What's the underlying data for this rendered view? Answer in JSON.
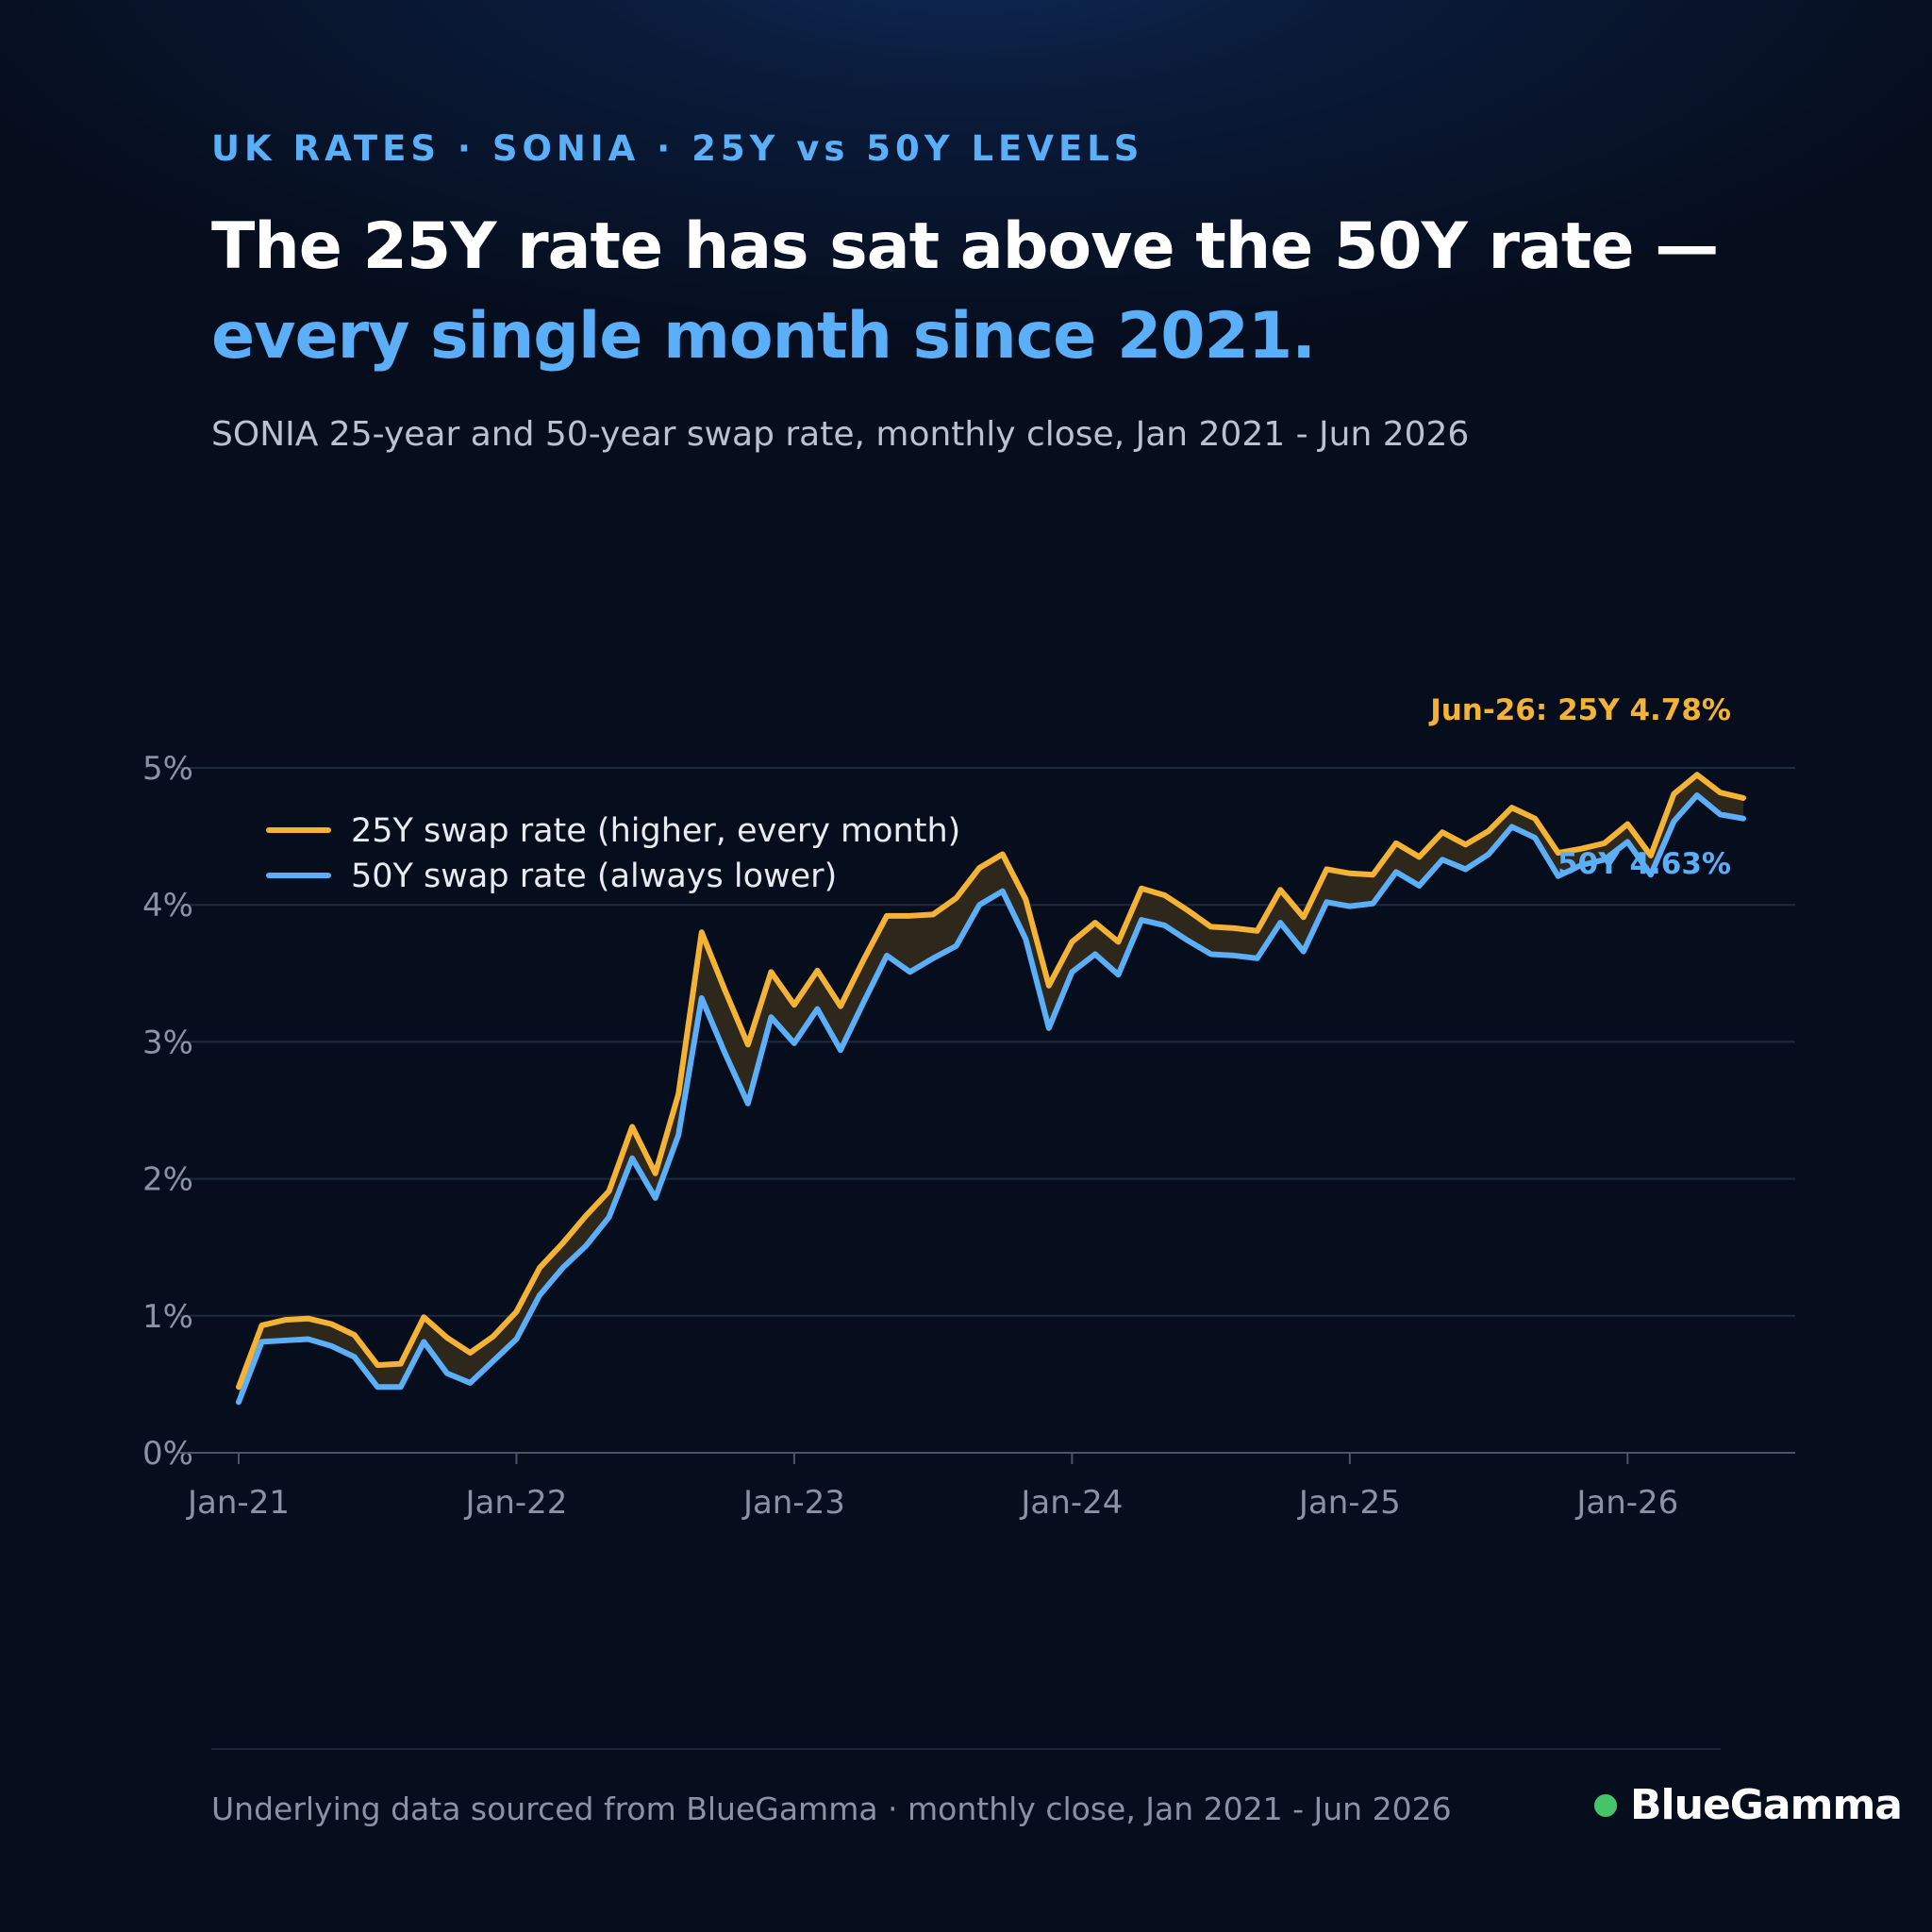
{
  "header": {
    "eyebrow": "UK RATES · SONIA · 25Y vs 50Y LEVELS",
    "headline_main": "The 25Y rate has sat above the 50Y rate — ",
    "headline_highlight": "every single month since 2021.",
    "subtitle": "SONIA 25-year and 50-year swap rate, monthly close, Jan 2021 - Jun 2026"
  },
  "footer": {
    "source": "Underlying data sourced from BlueGamma · monthly close, Jan 2021 - Jun 2026",
    "brand": "BlueGamma"
  },
  "colors": {
    "background": "#060e1e",
    "accent": "#5aaff8",
    "series_25y": "#f5b335",
    "series_50y": "#5aaff8",
    "spread_fill": "#2e271c",
    "grid": "#1e2a3d",
    "brand_dot": "#46c46a"
  },
  "chart_data": {
    "type": "line",
    "title": "",
    "xlabel": "",
    "ylabel": "",
    "ylim": [
      0,
      5
    ],
    "yticks": [
      0,
      1,
      2,
      3,
      4,
      5
    ],
    "ytick_labels": [
      "0%",
      "1%",
      "2%",
      "3%",
      "4%",
      "5%"
    ],
    "xtick_labels": [
      "Jan-21",
      "Jan-22",
      "Jan-23",
      "Jan-24",
      "Jan-25",
      "Jan-26"
    ],
    "grid": true,
    "legend_position": "top-left",
    "spread_shaded": true,
    "x": [
      "Jan-21",
      "Feb-21",
      "Mar-21",
      "Apr-21",
      "May-21",
      "Jun-21",
      "Jul-21",
      "Aug-21",
      "Sep-21",
      "Oct-21",
      "Nov-21",
      "Dec-21",
      "Jan-22",
      "Feb-22",
      "Mar-22",
      "Apr-22",
      "May-22",
      "Jun-22",
      "Jul-22",
      "Aug-22",
      "Sep-22",
      "Oct-22",
      "Nov-22",
      "Dec-22",
      "Jan-23",
      "Feb-23",
      "Mar-23",
      "Apr-23",
      "May-23",
      "Jun-23",
      "Jul-23",
      "Aug-23",
      "Sep-23",
      "Oct-23",
      "Nov-23",
      "Dec-23",
      "Jan-24",
      "Feb-24",
      "Mar-24",
      "Apr-24",
      "May-24",
      "Jun-24",
      "Jul-24",
      "Aug-24",
      "Sep-24",
      "Oct-24",
      "Nov-24",
      "Dec-24",
      "Jan-25",
      "Feb-25",
      "Mar-25",
      "Apr-25",
      "May-25",
      "Jun-25",
      "Jul-25",
      "Aug-25",
      "Sep-25",
      "Oct-25",
      "Nov-25",
      "Dec-25",
      "Jan-26",
      "Feb-26",
      "Mar-26",
      "Apr-26",
      "May-26",
      "Jun-26"
    ],
    "series": [
      {
        "name": "25Y swap rate (higher, every month)",
        "values": [
          0.48,
          0.93,
          0.97,
          0.98,
          0.94,
          0.86,
          0.64,
          0.65,
          0.99,
          0.84,
          0.73,
          0.85,
          1.03,
          1.35,
          1.53,
          1.73,
          1.91,
          2.38,
          2.04,
          2.62,
          3.8,
          3.38,
          2.98,
          3.51,
          3.27,
          3.52,
          3.26,
          3.6,
          3.92,
          3.92,
          3.93,
          4.05,
          4.27,
          4.37,
          4.04,
          3.41,
          3.73,
          3.87,
          3.73,
          4.12,
          4.07,
          3.96,
          3.84,
          3.83,
          3.81,
          4.11,
          3.91,
          4.26,
          4.23,
          4.22,
          4.45,
          4.35,
          4.53,
          4.44,
          4.54,
          4.71,
          4.63,
          4.38,
          4.41,
          4.45,
          4.59,
          4.36,
          4.81,
          4.95,
          4.82,
          4.78
        ]
      },
      {
        "name": "50Y swap rate (always lower)",
        "values": [
          0.37,
          0.81,
          0.82,
          0.83,
          0.78,
          0.7,
          0.48,
          0.48,
          0.81,
          0.58,
          0.51,
          0.67,
          0.83,
          1.15,
          1.35,
          1.51,
          1.72,
          2.15,
          1.86,
          2.32,
          3.32,
          2.92,
          2.55,
          3.18,
          2.99,
          3.24,
          2.94,
          3.29,
          3.63,
          3.51,
          3.61,
          3.7,
          4.0,
          4.1,
          3.75,
          3.1,
          3.51,
          3.64,
          3.49,
          3.89,
          3.85,
          3.74,
          3.64,
          3.63,
          3.61,
          3.87,
          3.66,
          4.02,
          3.99,
          4.01,
          4.24,
          4.14,
          4.33,
          4.26,
          4.37,
          4.57,
          4.49,
          4.21,
          4.29,
          4.33,
          4.46,
          4.22,
          4.61,
          4.8,
          4.66,
          4.63
        ]
      }
    ],
    "annotations": [
      {
        "text": "Jun-26: 25Y 4.78%",
        "series": "25Y swap rate (higher, every month)"
      },
      {
        "text": "50Y 4.63%",
        "series": "50Y swap rate (always lower)"
      }
    ]
  }
}
